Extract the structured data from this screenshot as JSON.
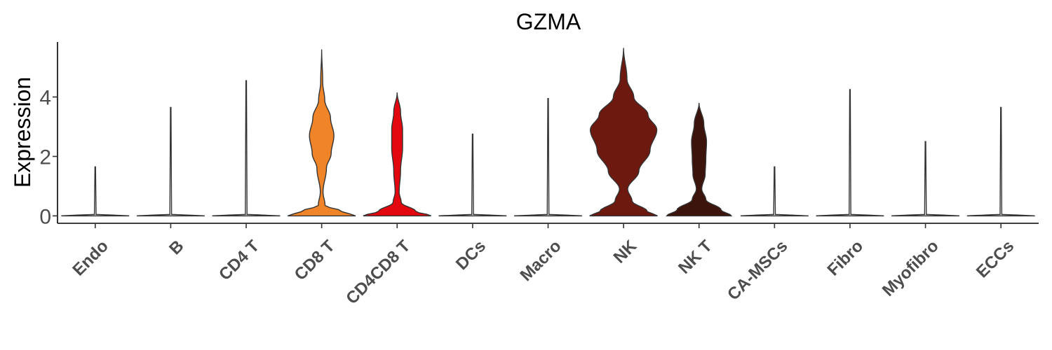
{
  "chart_data": {
    "type": "violin",
    "title": "GZMA",
    "xlabel": "",
    "ylabel": "Expression",
    "ylim": [
      -0.25,
      5.85
    ],
    "yticks": [
      0,
      2,
      4
    ],
    "grid": false,
    "legend": "none",
    "categories": [
      "Endo",
      "B",
      "CD4 T",
      "CD8 T",
      "CD4CD8 T",
      "DCs",
      "Macro",
      "NK",
      "NK T",
      "CA-MSCs",
      "Fibro",
      "Myofibro",
      "ECCs"
    ],
    "max_values": [
      1.65,
      3.65,
      4.55,
      5.6,
      4.15,
      2.75,
      3.95,
      5.65,
      3.8,
      1.65,
      4.25,
      2.5,
      3.65
    ],
    "colors": [
      "#ffffff",
      "#ffffff",
      "#ffffff",
      "#ef8428",
      "#e3070f",
      "#ffffff",
      "#ffffff",
      "#6d190f",
      "#3d140b",
      "#ffffff",
      "#ffffff",
      "#ffffff",
      "#ffffff"
    ],
    "density_profiles": {
      "CD8 T": [
        [
          0,
          1.0
        ],
        [
          0.15,
          0.6
        ],
        [
          0.35,
          0.1
        ],
        [
          0.8,
          0.04
        ],
        [
          1.6,
          0.14
        ],
        [
          2.1,
          0.28
        ],
        [
          2.7,
          0.36
        ],
        [
          3.3,
          0.26
        ],
        [
          3.9,
          0.09
        ],
        [
          4.5,
          0.03
        ],
        [
          5.6,
          0.0
        ]
      ],
      "CD4CD8 T": [
        [
          0,
          1.0
        ],
        [
          0.15,
          0.55
        ],
        [
          0.45,
          0.12
        ],
        [
          0.8,
          0.06
        ],
        [
          1.5,
          0.1
        ],
        [
          2.3,
          0.16
        ],
        [
          2.9,
          0.16
        ],
        [
          3.5,
          0.1
        ],
        [
          4.15,
          0.0
        ]
      ],
      "NK": [
        [
          0,
          1.0
        ],
        [
          0.15,
          0.7
        ],
        [
          0.5,
          0.25
        ],
        [
          0.9,
          0.12
        ],
        [
          1.5,
          0.45
        ],
        [
          2.2,
          0.78
        ],
        [
          2.9,
          0.98
        ],
        [
          3.4,
          0.72
        ],
        [
          4.0,
          0.3
        ],
        [
          4.6,
          0.1
        ],
        [
          5.65,
          0.0
        ]
      ],
      "NK T": [
        [
          0,
          0.95
        ],
        [
          0.2,
          0.65
        ],
        [
          0.55,
          0.2
        ],
        [
          0.9,
          0.08
        ],
        [
          1.4,
          0.18
        ],
        [
          1.9,
          0.2
        ],
        [
          2.5,
          0.22
        ],
        [
          3.1,
          0.14
        ],
        [
          3.8,
          0.0
        ]
      ]
    }
  }
}
